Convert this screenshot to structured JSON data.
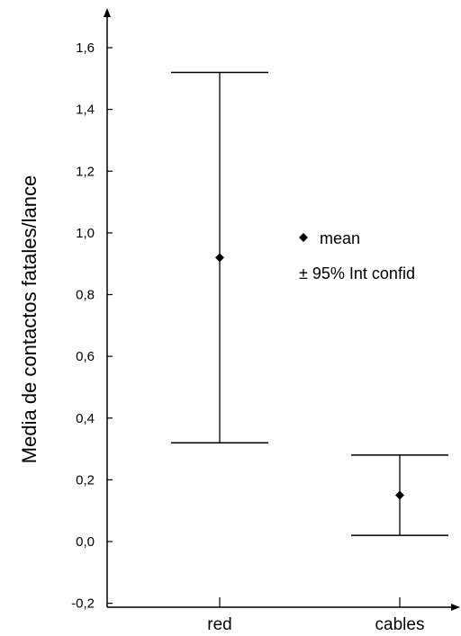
{
  "chart_data": {
    "type": "error-bar",
    "categories": [
      "red",
      "cables"
    ],
    "mean": [
      0.92,
      0.15
    ],
    "ci_lower": [
      0.32,
      0.02
    ],
    "ci_upper": [
      1.52,
      0.28
    ],
    "ylabel": "Media de contactos fatales/lance",
    "ylim": [
      -0.2,
      1.72
    ],
    "yticks": [
      "-0,2",
      "0,0",
      "0,2",
      "0,4",
      "0,6",
      "0,8",
      "1,0",
      "1,2",
      "1,4",
      "1,6"
    ],
    "yticks_values": [
      -0.2,
      0.0,
      0.2,
      0.4,
      0.6,
      0.8,
      1.0,
      1.2,
      1.4,
      1.6
    ],
    "legend": {
      "mean_label": "mean",
      "ci_label": "± 95% Int confid",
      "placement": "right-middle"
    },
    "grid": false
  }
}
